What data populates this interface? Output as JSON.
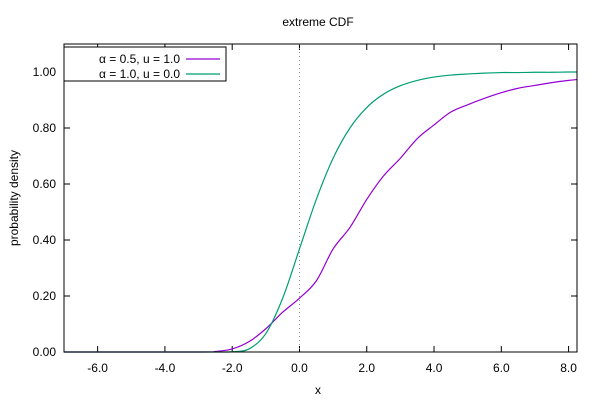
{
  "chart_data": {
    "type": "line",
    "title": "extreme CDF",
    "xlabel": "x",
    "ylabel": "probability density",
    "xlim": [
      -7,
      8.25
    ],
    "ylim": [
      0,
      1.1
    ],
    "x_ticks": [
      -6,
      -4,
      -2,
      0,
      2,
      4,
      6,
      8
    ],
    "x_tick_labels": [
      "-6.0",
      "-4.0",
      "-2.0",
      "0.0",
      "2.0",
      "4.0",
      "6.0",
      "8.0"
    ],
    "y_ticks": [
      0,
      0.2,
      0.4,
      0.6,
      0.8,
      1.0
    ],
    "y_tick_labels": [
      "0.00",
      "0.20",
      "0.40",
      "0.60",
      "0.80",
      "1.00"
    ],
    "reference_line": {
      "x": 0,
      "style": "dotted"
    },
    "legend_position": "top-left",
    "grid": false,
    "series": [
      {
        "name": "α = 0.5, u = 1.0",
        "color": "#9400d3",
        "alpha": 0.5,
        "u": 1.0,
        "x": [
          -3,
          -2.5,
          -2,
          -1.5,
          -1,
          -0.5,
          0,
          0.5,
          1,
          1.5,
          2,
          2.5,
          3,
          3.5,
          4,
          4.5,
          5,
          5.5,
          6,
          6.5,
          7,
          7.5,
          8,
          8.25
        ],
        "values": [
          0.0,
          0.002,
          0.011,
          0.037,
          0.083,
          0.142,
          0.192,
          0.254,
          0.368,
          0.445,
          0.545,
          0.629,
          0.692,
          0.762,
          0.811,
          0.857,
          0.883,
          0.906,
          0.926,
          0.942,
          0.952,
          0.962,
          0.97,
          0.973
        ]
      },
      {
        "name": "α = 1.0, u = 0.0",
        "color": "#009e73",
        "alpha": 1.0,
        "u": 0.0,
        "x": [
          -3,
          -2.5,
          -2,
          -1.5,
          -1,
          -0.5,
          0,
          0.5,
          1,
          1.5,
          2,
          2.5,
          3,
          3.5,
          4,
          4.5,
          5,
          5.5,
          6,
          6.5,
          7,
          7.5,
          8,
          8.25
        ],
        "values": [
          0.0,
          0.0,
          0.001,
          0.011,
          0.066,
          0.192,
          0.368,
          0.545,
          0.692,
          0.8,
          0.873,
          0.921,
          0.951,
          0.97,
          0.982,
          0.989,
          0.993,
          0.996,
          0.998,
          0.998,
          0.999,
          0.999,
          1.0,
          1.0
        ]
      }
    ]
  }
}
